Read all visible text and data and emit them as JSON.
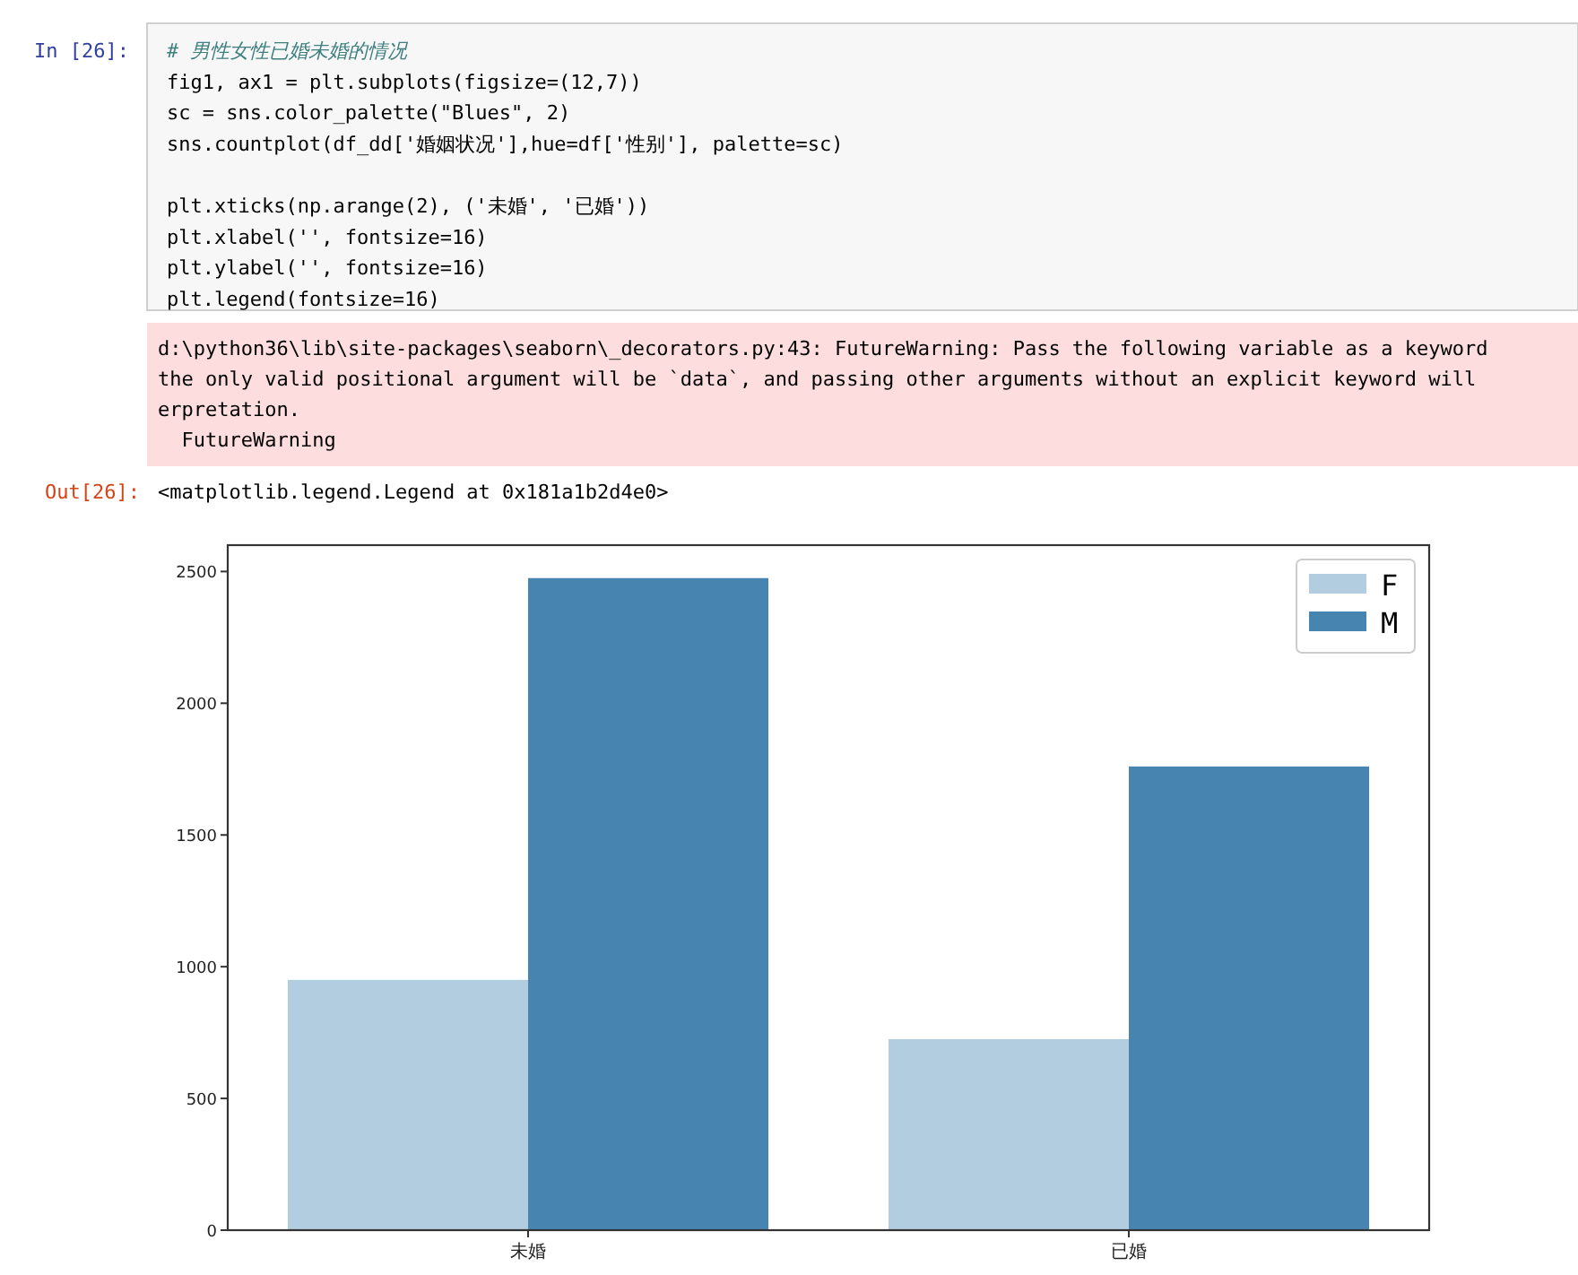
{
  "chart_data": {
    "type": "bar",
    "categories": [
      "未婚",
      "已婚"
    ],
    "series": [
      {
        "name": "F",
        "color": "#b3cde0",
        "values": [
          950,
          725
        ]
      },
      {
        "name": "M",
        "color": "#4884b0",
        "values": [
          2475,
          1760
        ]
      }
    ],
    "ylim": [
      0,
      2600
    ],
    "yticks": [
      0,
      500,
      1000,
      1500,
      2000,
      2500
    ],
    "legend": "top right",
    "annotations": [
      "In [26]:",
      "# 男性女性已婚未婚的情况",
      "fig1, ax1 = plt.subplots(figsize=(12,7))",
      "sc = sns.color_palette(\"Blues\", 2)",
      "sns.countplot(df_dd['婚姻状况'],hue=df['性别'], palette=sc)",
      "plt.xticks(np.arange(2), ('未婚', '已婚'))",
      "plt.xlabel('', fontsize=16)",
      "plt.ylabel('', fontsize=16)",
      "plt.legend(fontsize=16)",
      "d:\\python36\\lib\\site-packages\\seaborn\\_decorators.py:43: FutureWarning: Pass the following variable as a keyword",
      "the only valid positional argument will be `data`, and passing other arguments without an explicit keyword will",
      "erpretation.",
      "  FutureWarning",
      "Out[26]:",
      "<matplotlib.legend.Legend at 0x181a1b2d4e0>"
    ]
  }
}
